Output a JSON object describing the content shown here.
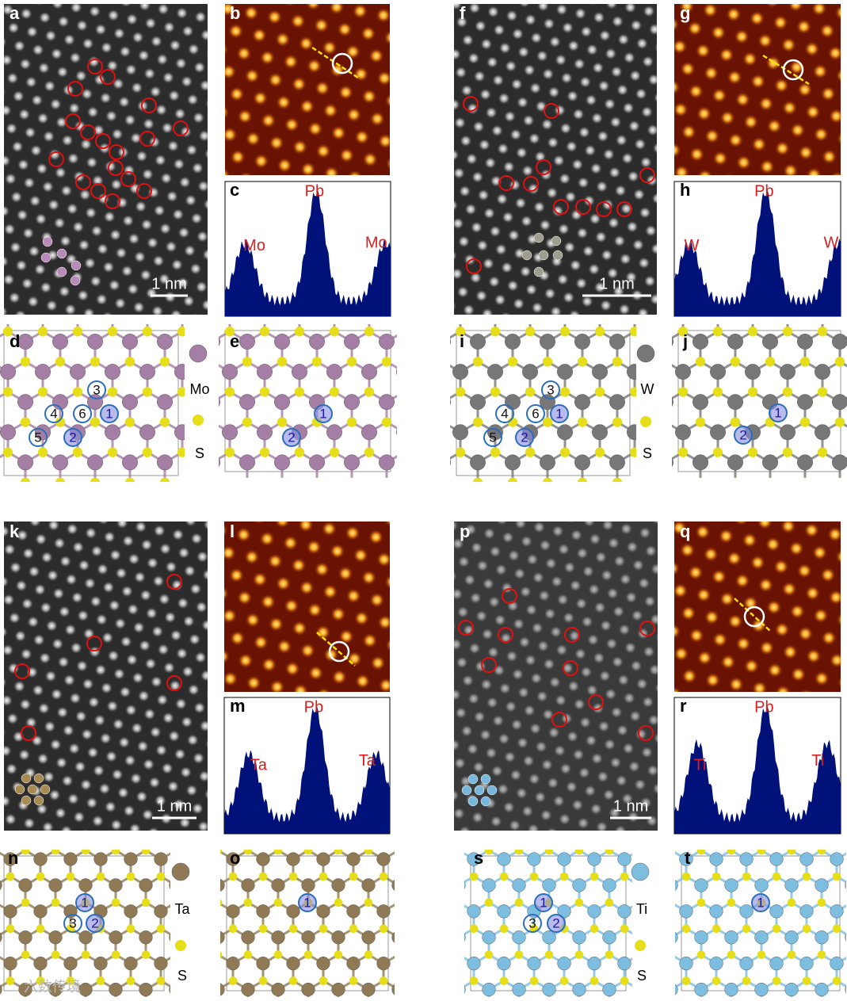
{
  "panel_letters": [
    "a",
    "b",
    "c",
    "d",
    "e",
    "f",
    "g",
    "h",
    "i",
    "j",
    "k",
    "l",
    "m",
    "n",
    "o",
    "p",
    "q",
    "r",
    "s",
    "t"
  ],
  "scale_bars": [
    "1 nm",
    "1 nm",
    "1 nm",
    "1 nm"
  ],
  "profiles": [
    {
      "left": "Mo",
      "peak": "Pb",
      "right": "Mo"
    },
    {
      "left": "W",
      "peak": "Pb",
      "right": "W"
    },
    {
      "left": "Ta",
      "peak": "Pb",
      "right": "Ta"
    },
    {
      "left": "Ti",
      "peak": "Pb",
      "right": "Ti"
    }
  ],
  "models": [
    {
      "numbers": [
        "3",
        "4",
        "6",
        "1",
        "5",
        "2"
      ],
      "legend": [
        "Mo",
        "S"
      ]
    },
    {
      "numbers": [
        "1",
        "2"
      ]
    },
    {
      "numbers": [
        "3",
        "4",
        "6",
        "1",
        "5",
        "2"
      ],
      "legend": [
        "W",
        "S"
      ]
    },
    {
      "numbers": [
        "1",
        "2"
      ]
    },
    {
      "numbers": [
        "1",
        "3",
        "2"
      ],
      "legend": [
        "Ta",
        "S"
      ]
    },
    {
      "numbers": [
        "1"
      ]
    },
    {
      "numbers": [
        "1",
        "3",
        "2"
      ],
      "legend": [
        "Ti",
        "S"
      ]
    },
    {
      "numbers": [
        "1"
      ]
    }
  ],
  "watermark": "六数传境"
}
